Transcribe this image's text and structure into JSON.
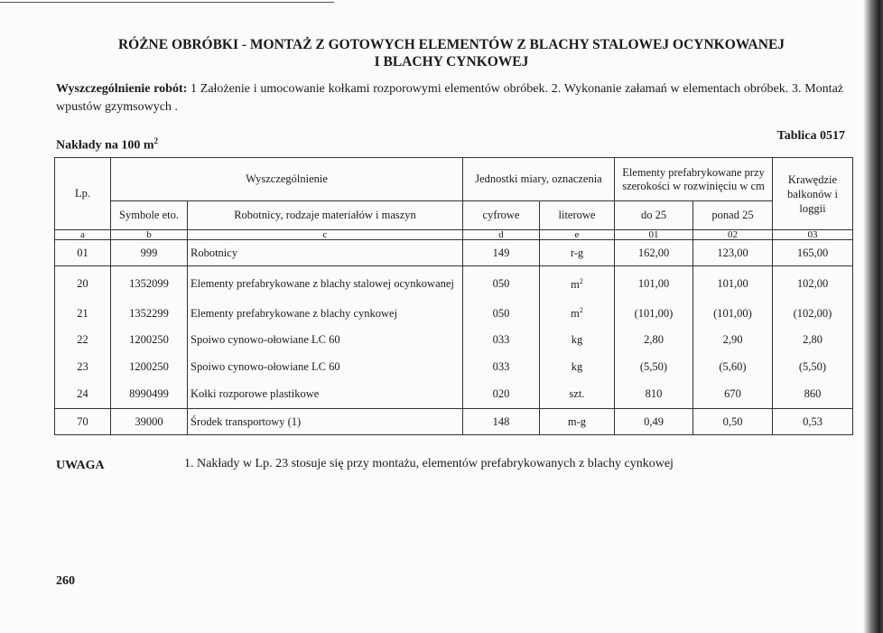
{
  "title_line1": "RÓŻNE OBRÓBKI - MONTAŻ Z GOTOWYCH ELEMENTÓW Z BLACHY STALOWEJ  OCYNKOWANEJ",
  "title_line2": "I BLACHY CYNKOWEJ",
  "description_label": "Wyszczególnienie robót:",
  "description_text": "1 Założenie i umocowanie  kołkami rozporowymi elementów obróbek.  2. Wykonanie załamań w elementach obróbek.  3. Montaż wpustów gzymsowych .",
  "naklady": "Nakłady na 100 m",
  "naklady_sup": "2",
  "tablica": "Tablica 0517",
  "table": {
    "h_lp": "Lp.",
    "h_wyszczegolnienie": "Wyszczególnienie",
    "h_jednostki": "Jednostki miary, oznaczenia",
    "h_elementy": "Elementy prefabrykowane przy szerokości w rozwinięciu w cm",
    "h_krawedzie": "Krawędzie balkonów i loggii",
    "h_symbole": "Symbole eto.",
    "h_robotnicy": "Robotnicy, rodzaje materiałów i maszyn",
    "h_cyfrowe": "cyfrowe",
    "h_literowe": "literowe",
    "h_do25": "do 25",
    "h_ponad25": "ponad 25",
    "codes": [
      "a",
      "b",
      "c",
      "d",
      "e",
      "01",
      "02",
      "03"
    ],
    "rows": [
      {
        "lp": "01",
        "sym": "999",
        "name": "Robotnicy",
        "cyf": "149",
        "lit": "r-g",
        "v1": "162,00",
        "v2": "123,00",
        "v3": "165,00"
      },
      {
        "lp": "20",
        "sym": "1352099",
        "name": "Elementy prefabrykowane z blachy stalowej ocynkowanej",
        "cyf": "050",
        "lit": "m",
        "lit_sup": "2",
        "v1": "101,00",
        "v2": "101,00",
        "v3": "102,00"
      },
      {
        "lp": "21",
        "sym": "1352299",
        "name": "Elementy prefabrykowane z blachy cynkowej",
        "cyf": "050",
        "lit": "m",
        "lit_sup": "2",
        "v1": "(101,00)",
        "v2": "(101,00)",
        "v3": "(102,00)"
      },
      {
        "lp": "22",
        "sym": "1200250",
        "name": "Spoiwo cynowo-ołowiane LC 60",
        "cyf": "033",
        "lit": "kg",
        "v1": "2,80",
        "v2": "2,90",
        "v3": "2,80"
      },
      {
        "lp": "23",
        "sym": "1200250",
        "name": "Spoiwo cynowo-ołowiane LC 60",
        "cyf": "033",
        "lit": "kg",
        "v1": "(5,50)",
        "v2": "(5,60)",
        "v3": "(5,50)"
      },
      {
        "lp": "24",
        "sym": "8990499",
        "name": "Kołki rozporowe plastikowe",
        "cyf": "020",
        "lit": "szt.",
        "v1": "810",
        "v2": "670",
        "v3": "860"
      },
      {
        "lp": "70",
        "sym": "39000",
        "name": "Środek transportowy (1)",
        "cyf": "148",
        "lit": "m-g",
        "v1": "0,49",
        "v2": "0,50",
        "v3": "0,53"
      }
    ]
  },
  "uwaga_label": "UWAGA",
  "uwaga_text": "1. Nakłady w Lp. 23 stosuje się przy montażu, elementów prefabrykowanych z blachy cynkowej",
  "page_number": "260"
}
